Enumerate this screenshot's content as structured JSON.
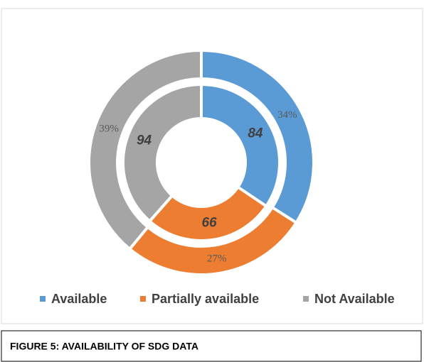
{
  "chart_data": {
    "type": "doughnut",
    "categories": [
      "Available",
      "Partially available",
      "Not Available"
    ],
    "colors": [
      "#5b9bd5",
      "#ed7d31",
      "#a5a5a5"
    ],
    "series": [
      {
        "values": [
          84,
          66,
          94
        ]
      },
      {
        "values": [
          34,
          27,
          39
        ],
        "value_labels": [
          "34%",
          "27%",
          "39%"
        ]
      }
    ],
    "legend": "bottom"
  },
  "caption": "FIGURE 5: AVAILABILITY OF SDG DATA"
}
